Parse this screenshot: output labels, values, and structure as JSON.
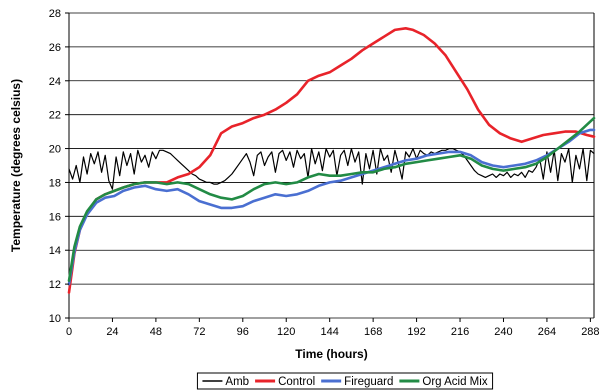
{
  "chart_data": {
    "type": "line",
    "title": "",
    "xlabel": "Time (hours)",
    "ylabel": "Temperature  (degrees celsius)",
    "xlim": [
      0,
      290
    ],
    "ylim": [
      10,
      28
    ],
    "xticks": [
      0,
      24,
      48,
      72,
      96,
      120,
      144,
      168,
      192,
      216,
      240,
      264,
      288
    ],
    "yticks": [
      10,
      12,
      14,
      16,
      18,
      20,
      22,
      24,
      26,
      28
    ],
    "grid": "horizontal",
    "legend_position": "bottom",
    "series": [
      {
        "name": "Amb",
        "color": "#000000",
        "x": [
          0,
          2,
          4,
          6,
          8,
          10,
          12,
          14,
          16,
          18,
          20,
          22,
          24,
          26,
          28,
          30,
          32,
          34,
          36,
          38,
          40,
          42,
          44,
          46,
          48,
          50,
          52,
          54,
          56,
          58,
          60,
          62,
          64,
          66,
          68,
          70,
          72,
          74,
          76,
          78,
          80,
          82,
          84,
          86,
          88,
          90,
          92,
          94,
          96,
          98,
          100,
          102,
          104,
          106,
          108,
          110,
          112,
          114,
          116,
          118,
          120,
          122,
          124,
          126,
          128,
          130,
          132,
          134,
          136,
          138,
          140,
          142,
          144,
          146,
          148,
          150,
          152,
          154,
          156,
          158,
          160,
          162,
          164,
          166,
          168,
          170,
          172,
          174,
          176,
          178,
          180,
          182,
          184,
          186,
          188,
          190,
          192,
          194,
          196,
          198,
          200,
          202,
          204,
          206,
          208,
          210,
          212,
          214,
          216,
          218,
          220,
          222,
          224,
          226,
          228,
          230,
          232,
          234,
          236,
          238,
          240,
          242,
          244,
          246,
          248,
          250,
          252,
          254,
          256,
          258,
          260,
          262,
          264,
          266,
          268,
          270,
          272,
          274,
          276,
          278,
          280,
          282,
          284,
          286,
          288,
          290
        ],
        "y": [
          18.8,
          18.2,
          19.0,
          18.0,
          19.5,
          18.5,
          19.7,
          19.1,
          19.8,
          18.6,
          19.6,
          18.1,
          17.6,
          19.5,
          18.4,
          19.8,
          19.0,
          19.7,
          18.5,
          19.9,
          19.2,
          19.6,
          18.9,
          19.8,
          19.4,
          19.9,
          19.9,
          19.8,
          19.7,
          19.5,
          19.3,
          19.1,
          18.9,
          18.7,
          18.5,
          18.4,
          18.2,
          18.1,
          18.0,
          18.0,
          17.9,
          17.9,
          18.0,
          18.1,
          18.3,
          18.5,
          18.8,
          19.1,
          19.4,
          19.7,
          19.2,
          18.4,
          19.6,
          19.8,
          19.0,
          19.5,
          19.8,
          18.6,
          19.7,
          19.9,
          19.3,
          19.8,
          18.9,
          19.9,
          19.4,
          19.7,
          18.3,
          20.0,
          19.1,
          19.8,
          18.7,
          20.0,
          19.5,
          19.9,
          18.4,
          19.6,
          19.9,
          19.0,
          20.0,
          19.2,
          19.8,
          17.9,
          19.7,
          18.8,
          19.9,
          18.5,
          20.0,
          19.3,
          19.6,
          18.6,
          19.9,
          19.1,
          18.2,
          19.8,
          19.5,
          20.0,
          19.4,
          19.9,
          19.7,
          19.6,
          19.8,
          19.7,
          19.8,
          19.9,
          19.9,
          20.0,
          20.0,
          19.9,
          19.8,
          19.6,
          19.3,
          19.0,
          18.7,
          18.5,
          18.4,
          18.3,
          18.4,
          18.5,
          18.3,
          18.5,
          18.4,
          18.6,
          18.3,
          18.5,
          18.4,
          18.6,
          18.3,
          18.7,
          18.6,
          18.9,
          19.4,
          18.2,
          19.8,
          18.6,
          19.9,
          18.1,
          19.7,
          19.2,
          20.0,
          18.0,
          19.6,
          18.8,
          20.0,
          18.1,
          19.9,
          19.7
        ]
      },
      {
        "name": "Control",
        "color": "#e8232a",
        "x": [
          0,
          3,
          6,
          10,
          15,
          20,
          25,
          30,
          36,
          42,
          48,
          54,
          60,
          66,
          72,
          78,
          84,
          90,
          96,
          102,
          108,
          114,
          120,
          126,
          132,
          138,
          144,
          150,
          156,
          162,
          168,
          174,
          180,
          186,
          190,
          196,
          202,
          208,
          214,
          220,
          226,
          232,
          238,
          244,
          250,
          256,
          262,
          268,
          274,
          280,
          286,
          290
        ],
        "y": [
          11.5,
          13.8,
          15.2,
          16.2,
          17.0,
          17.3,
          17.5,
          17.7,
          17.9,
          18.0,
          18.0,
          18.0,
          18.3,
          18.5,
          18.9,
          19.6,
          20.9,
          21.3,
          21.5,
          21.8,
          22.0,
          22.3,
          22.7,
          23.2,
          24.0,
          24.3,
          24.5,
          24.9,
          25.3,
          25.8,
          26.2,
          26.6,
          27.0,
          27.1,
          27.0,
          26.7,
          26.2,
          25.5,
          24.5,
          23.5,
          22.3,
          21.4,
          20.9,
          20.6,
          20.4,
          20.6,
          20.8,
          20.9,
          21.0,
          21.0,
          20.8,
          20.7
        ]
      },
      {
        "name": "Fireguard",
        "color": "#4a6fd1",
        "x": [
          0,
          3,
          6,
          10,
          15,
          20,
          25,
          30,
          36,
          42,
          48,
          54,
          60,
          66,
          72,
          78,
          84,
          90,
          96,
          102,
          108,
          114,
          120,
          126,
          132,
          138,
          144,
          150,
          156,
          162,
          168,
          174,
          180,
          186,
          192,
          198,
          204,
          210,
          216,
          222,
          228,
          234,
          240,
          246,
          252,
          258,
          264,
          270,
          276,
          282,
          288,
          290
        ],
        "y": [
          12.0,
          13.9,
          15.2,
          16.1,
          16.8,
          17.1,
          17.2,
          17.5,
          17.7,
          17.8,
          17.6,
          17.5,
          17.6,
          17.3,
          16.9,
          16.7,
          16.5,
          16.5,
          16.6,
          16.9,
          17.1,
          17.3,
          17.2,
          17.3,
          17.5,
          17.8,
          18.0,
          18.1,
          18.3,
          18.5,
          18.7,
          18.9,
          19.1,
          19.3,
          19.4,
          19.6,
          19.7,
          19.8,
          19.8,
          19.6,
          19.2,
          19.0,
          18.9,
          19.0,
          19.1,
          19.3,
          19.6,
          20.0,
          20.4,
          20.9,
          21.1,
          21.1
        ]
      },
      {
        "name": "Org Acid Mix",
        "color": "#228b45",
        "x": [
          0,
          3,
          6,
          10,
          15,
          20,
          25,
          30,
          36,
          42,
          48,
          54,
          60,
          66,
          72,
          78,
          84,
          90,
          96,
          102,
          108,
          114,
          120,
          126,
          132,
          138,
          144,
          150,
          156,
          162,
          168,
          174,
          180,
          186,
          192,
          198,
          204,
          210,
          216,
          222,
          228,
          234,
          240,
          246,
          252,
          258,
          264,
          270,
          276,
          282,
          288,
          290
        ],
        "y": [
          12.2,
          14.2,
          15.4,
          16.3,
          17.0,
          17.3,
          17.5,
          17.7,
          17.9,
          18.0,
          18.0,
          17.9,
          18.0,
          17.9,
          17.6,
          17.3,
          17.1,
          17.0,
          17.2,
          17.6,
          17.9,
          18.0,
          17.9,
          18.0,
          18.3,
          18.5,
          18.4,
          18.4,
          18.5,
          18.6,
          18.6,
          18.8,
          18.9,
          19.1,
          19.2,
          19.3,
          19.4,
          19.5,
          19.6,
          19.4,
          19.0,
          18.8,
          18.7,
          18.8,
          18.9,
          19.1,
          19.5,
          20.0,
          20.5,
          21.0,
          21.6,
          21.8
        ]
      }
    ]
  }
}
